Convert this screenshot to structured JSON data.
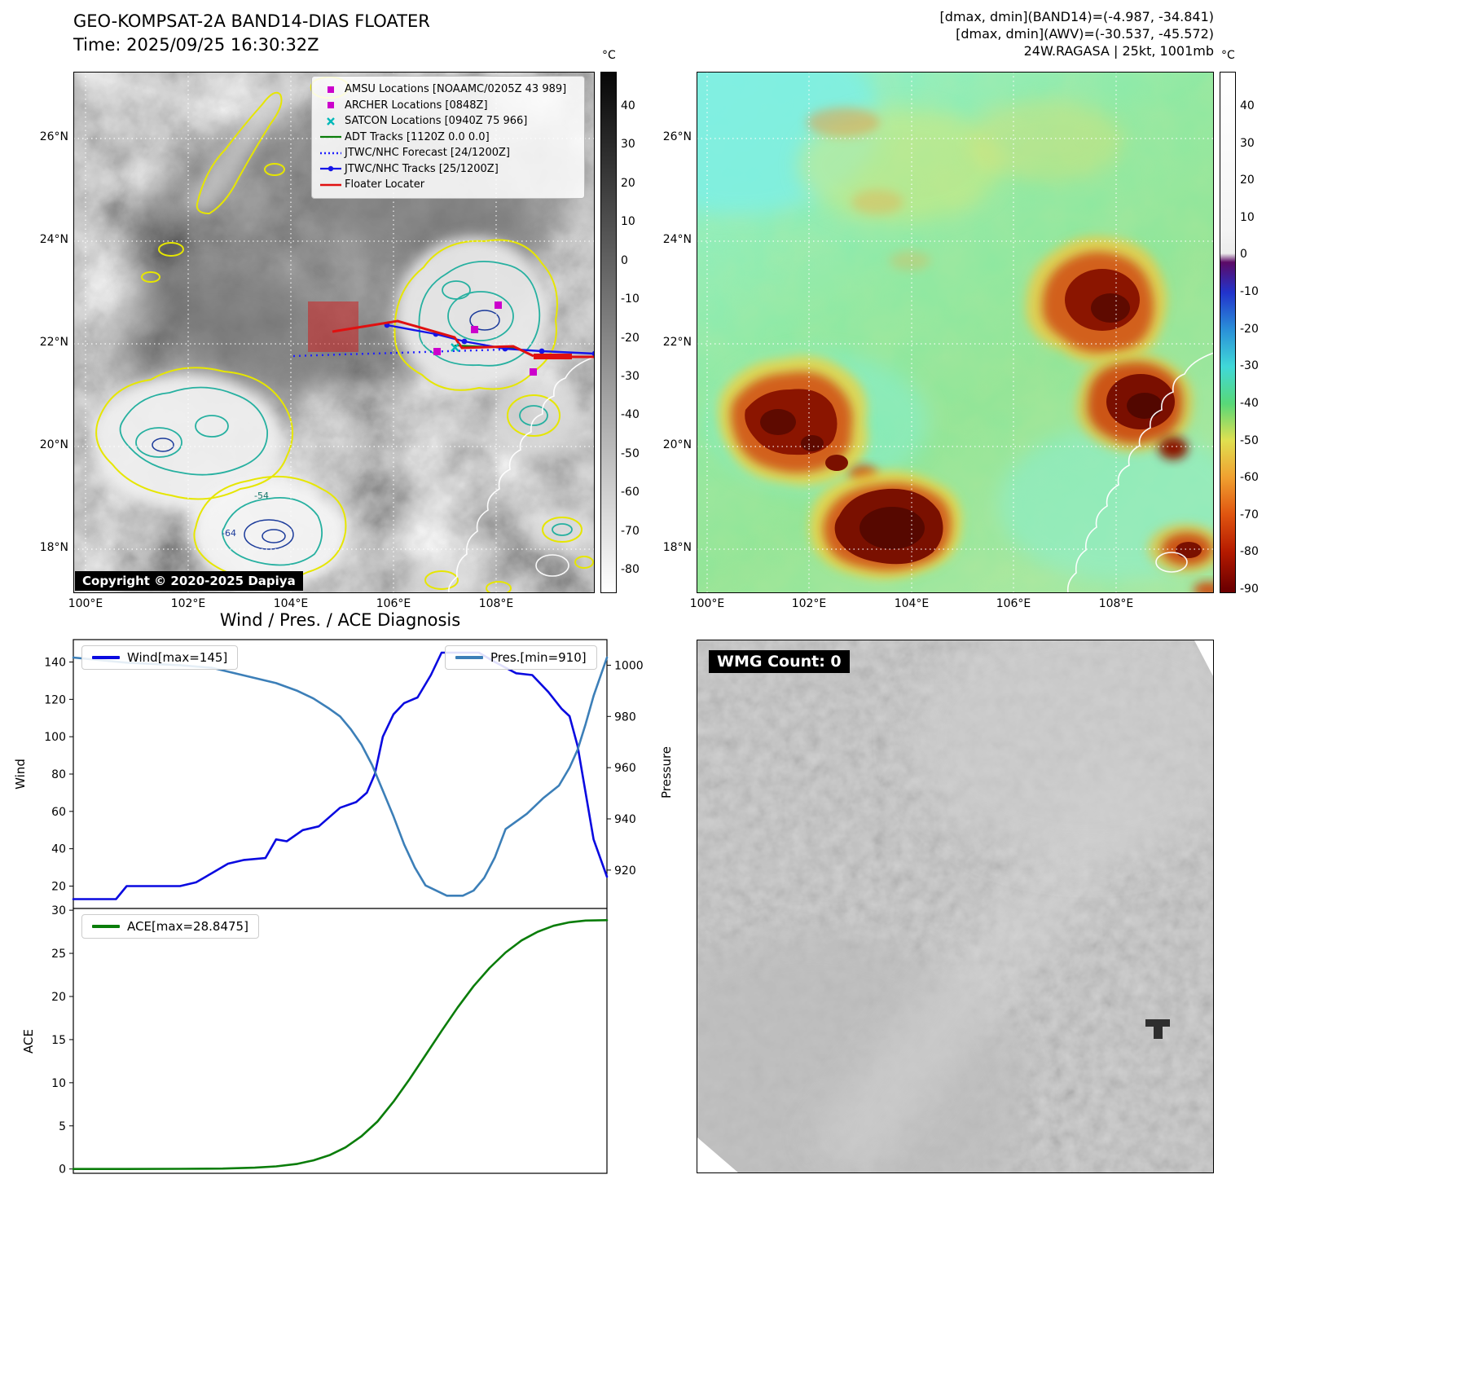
{
  "panel_band14": {
    "title": "GEO-KOMPSAT-2A BAND14-DIAS FLOATER",
    "time_label": "Time: 2025/09/25 16:30:32Z",
    "copyright": "Copyright © 2020-2025 Dapiya",
    "legend": [
      {
        "marker": "magenta-square",
        "label": "AMSU Locations [NOAAMC/0205Z 43 989]"
      },
      {
        "marker": "magenta-square",
        "label": "ARCHER Locations [0848Z]"
      },
      {
        "marker": "cyan-x",
        "label": "SATCON Locations [0940Z 75 966]"
      },
      {
        "marker": "green-line",
        "label": "ADT Tracks [1120Z 0.0 0.0]"
      },
      {
        "marker": "blue-dotted-line",
        "label": "JTWC/NHC Forecast [24/1200Z]"
      },
      {
        "marker": "blue-line-dot",
        "label": "JTWC/NHC Tracks [25/1200Z]"
      },
      {
        "marker": "red-line",
        "label": "Floater Locater"
      }
    ],
    "colorbar": {
      "unit": "°C",
      "ticks": [
        "40",
        "30",
        "20",
        "10",
        "0",
        "-10",
        "-20",
        "-30",
        "-40",
        "-50",
        "-60",
        "-70",
        "-80"
      ]
    },
    "lat_ticks": [
      "26°N",
      "24°N",
      "22°N",
      "20°N",
      "18°N"
    ],
    "lon_ticks": [
      "100°E",
      "102°E",
      "104°E",
      "106°E",
      "108°E"
    ],
    "contour_labels": [
      "-54",
      "-64"
    ]
  },
  "panel_awv": {
    "header_lines": [
      "[dmax, dmin](BAND14)=(-4.987, -34.841)",
      "[dmax, dmin](AWV)=(-30.537, -45.572)",
      "24W.RAGASA | 25kt, 1001mb"
    ],
    "colorbar": {
      "unit": "°C",
      "ticks": [
        "40",
        "30",
        "20",
        "10",
        "0",
        "-10",
        "-20",
        "-30",
        "-40",
        "-50",
        "-60",
        "-70",
        "-80",
        "-90"
      ]
    },
    "lat_ticks": [
      "26°N",
      "24°N",
      "22°N",
      "20°N",
      "18°N"
    ],
    "lon_ticks": [
      "100°E",
      "102°E",
      "104°E",
      "106°E",
      "108°E"
    ]
  },
  "panel_diagnosis": {
    "title": "Wind / Pres. / ACE Diagnosis"
  },
  "panel_wmg": {
    "count_label": "WMG Count: 0"
  },
  "colors": {
    "wind_line": "#0a0ae0",
    "pres_line": "#3c7fb8",
    "ace_line": "#0a7d0a",
    "floater_line": "#e01010",
    "jtwc_track": "#1515e8",
    "jtwc_forecast": "#2020ff",
    "adt_track": "#0a7d0a",
    "amsu_marker": "#cc00cc",
    "satcon_marker": "#00b8b8"
  },
  "chart_data": [
    {
      "type": "line",
      "title": "Wind / Pres. / ACE Diagnosis (upper panel)",
      "x_axis": "time (unlabeled, normalized 0-1)",
      "ylabel_left": "Wind",
      "ylabel_right": "Pressure",
      "ylim_left": [
        8,
        152
      ],
      "yticks_left": [
        20,
        40,
        60,
        80,
        100,
        120,
        140
      ],
      "ylim_right": [
        905,
        1010
      ],
      "yticks_right": [
        920,
        940,
        960,
        980,
        1000
      ],
      "grid": false,
      "series": [
        {
          "name": "Wind[max=145]",
          "axis": "left",
          "color": "#0a0ae0",
          "x": [
            0,
            0.08,
            0.1,
            0.2,
            0.23,
            0.26,
            0.29,
            0.32,
            0.36,
            0.38,
            0.4,
            0.43,
            0.46,
            0.5,
            0.53,
            0.55,
            0.565,
            0.58,
            0.6,
            0.62,
            0.645,
            0.67,
            0.69,
            0.76,
            0.79,
            0.83,
            0.86,
            0.89,
            0.915,
            0.93,
            0.945,
            0.96,
            0.975,
            1.0
          ],
          "values": [
            13,
            13,
            20,
            20,
            22,
            27,
            32,
            34,
            35,
            45,
            44,
            50,
            52,
            62,
            65,
            70,
            80,
            100,
            112,
            118,
            121,
            133,
            145,
            145,
            140,
            134,
            133,
            124,
            115,
            111,
            95,
            70,
            45,
            25
          ]
        },
        {
          "name": "Pres.[min=910]",
          "axis": "right",
          "color": "#3c7fb8",
          "x": [
            0,
            0.1,
            0.2,
            0.26,
            0.3,
            0.34,
            0.38,
            0.42,
            0.45,
            0.48,
            0.5,
            0.52,
            0.54,
            0.56,
            0.58,
            0.6,
            0.62,
            0.64,
            0.66,
            0.7,
            0.73,
            0.75,
            0.77,
            0.79,
            0.81,
            0.85,
            0.88,
            0.91,
            0.93,
            0.945,
            0.96,
            0.975,
            1.0
          ],
          "values": [
            1003,
            1001,
            1000,
            999,
            997,
            995,
            993,
            990,
            987,
            983,
            980,
            975,
            969,
            961,
            951,
            941,
            930,
            921,
            914,
            910,
            910,
            912,
            917,
            925,
            936,
            942,
            948,
            953,
            960,
            967,
            977,
            988,
            1003
          ]
        }
      ]
    },
    {
      "type": "line",
      "title": "ACE (lower panel)",
      "x_axis": "time (unlabeled, normalized 0-1)",
      "ylabel": "ACE",
      "ylim": [
        -0.5,
        30.2
      ],
      "yticks": [
        0,
        5,
        10,
        15,
        20,
        25,
        30
      ],
      "grid": false,
      "series": [
        {
          "name": "ACE[max=28.8475]",
          "color": "#0a7d0a",
          "x": [
            0,
            0.1,
            0.2,
            0.28,
            0.34,
            0.38,
            0.42,
            0.45,
            0.48,
            0.51,
            0.54,
            0.57,
            0.6,
            0.63,
            0.66,
            0.69,
            0.72,
            0.75,
            0.78,
            0.81,
            0.84,
            0.87,
            0.9,
            0.93,
            0.96,
            1.0
          ],
          "values": [
            0,
            0,
            0.02,
            0.05,
            0.15,
            0.3,
            0.6,
            1.0,
            1.6,
            2.5,
            3.8,
            5.5,
            7.8,
            10.4,
            13.2,
            16.0,
            18.7,
            21.2,
            23.3,
            25.1,
            26.5,
            27.5,
            28.2,
            28.6,
            28.8,
            28.8475
          ]
        }
      ]
    }
  ]
}
